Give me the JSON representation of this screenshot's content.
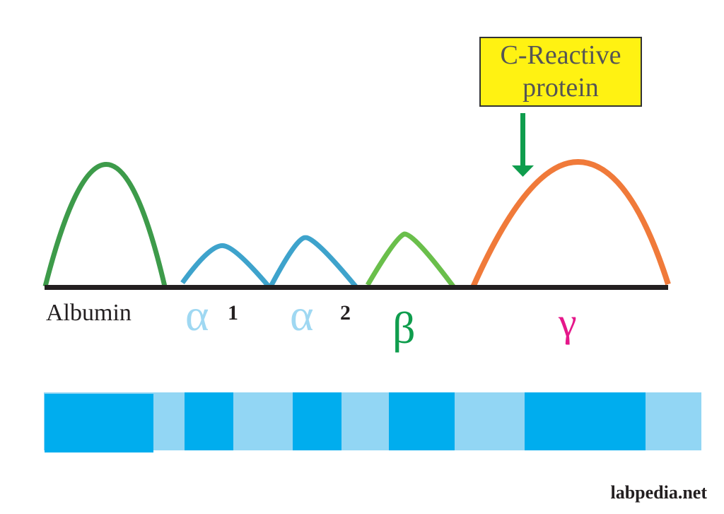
{
  "callout": {
    "line1": "C-Reactive",
    "line2": "protein",
    "fill": "#fff212",
    "arrow_color": "#0f9d4d"
  },
  "labels": {
    "albumin": "Albumin",
    "alpha1_symbol": "α",
    "alpha1_sub": "1",
    "alpha2_symbol": "α",
    "alpha2_sub": "2",
    "beta": "β",
    "gamma": "γ"
  },
  "colors": {
    "albumin_peak": "#3d9b4a",
    "alpha_peaks": "#3ea3cc",
    "beta_peak": "#6abf4b",
    "gamma_peak": "#f07a3a",
    "baseline": "#231f20",
    "alpha_label": "#9fd8f2",
    "beta_label": "#0f9d4d",
    "gamma_label": "#e5178a",
    "band_dark": "#00adee",
    "band_light": "#92d6f4"
  },
  "watermark": "labpedia.net"
}
